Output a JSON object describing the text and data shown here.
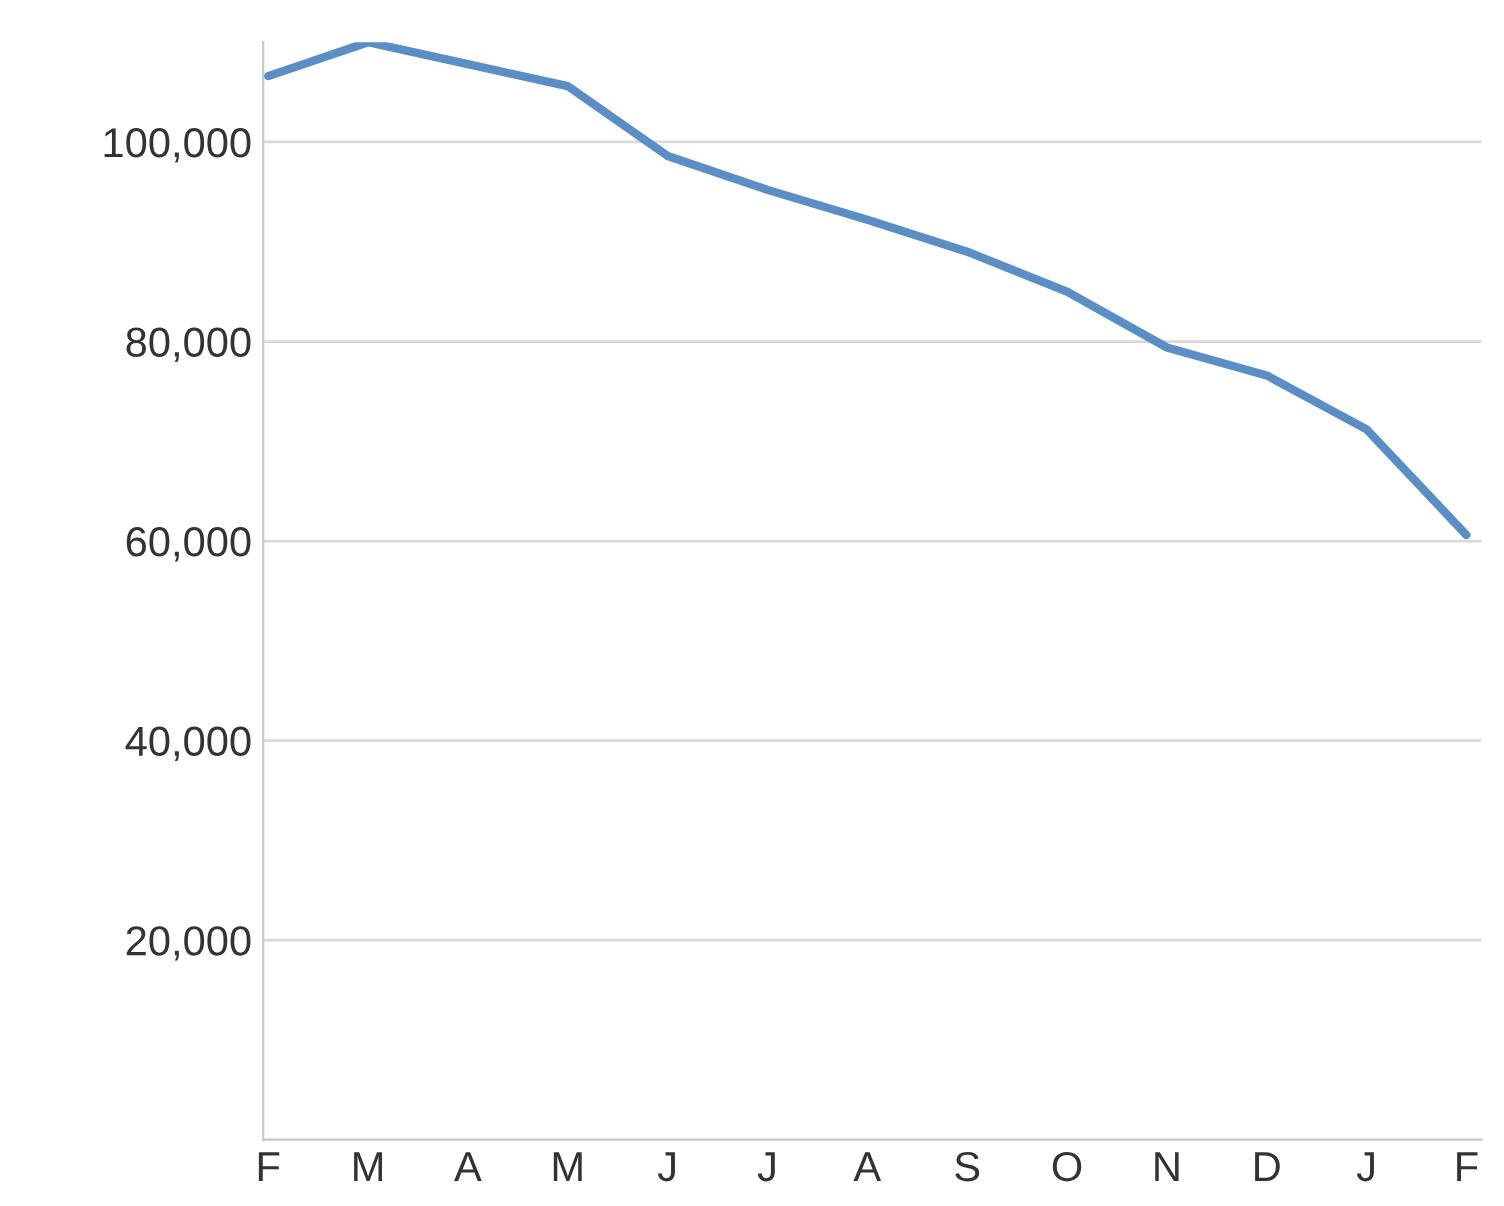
{
  "chart_data": {
    "type": "line",
    "categories": [
      "F",
      "M",
      "A",
      "M",
      "J",
      "J",
      "A",
      "S",
      "O",
      "N",
      "D",
      "J",
      "F"
    ],
    "series": [
      {
        "color": "#5b8ec4",
        "values": [
          106600,
          110000,
          107800,
          105600,
          98600,
          95200,
          92200,
          89000,
          85000,
          79400,
          76600,
          71200,
          60600
        ]
      }
    ],
    "ylim": [
      0,
      110000
    ],
    "yticks": [
      {
        "value": 20000,
        "label": "20,000"
      },
      {
        "value": 40000,
        "label": "40,000"
      },
      {
        "value": 60000,
        "label": "60,000"
      },
      {
        "value": 80000,
        "label": "80,000"
      },
      {
        "value": 100000,
        "label": "100,000"
      }
    ],
    "grid": "y",
    "legend": false,
    "marker": "none",
    "line_style": "solid"
  }
}
